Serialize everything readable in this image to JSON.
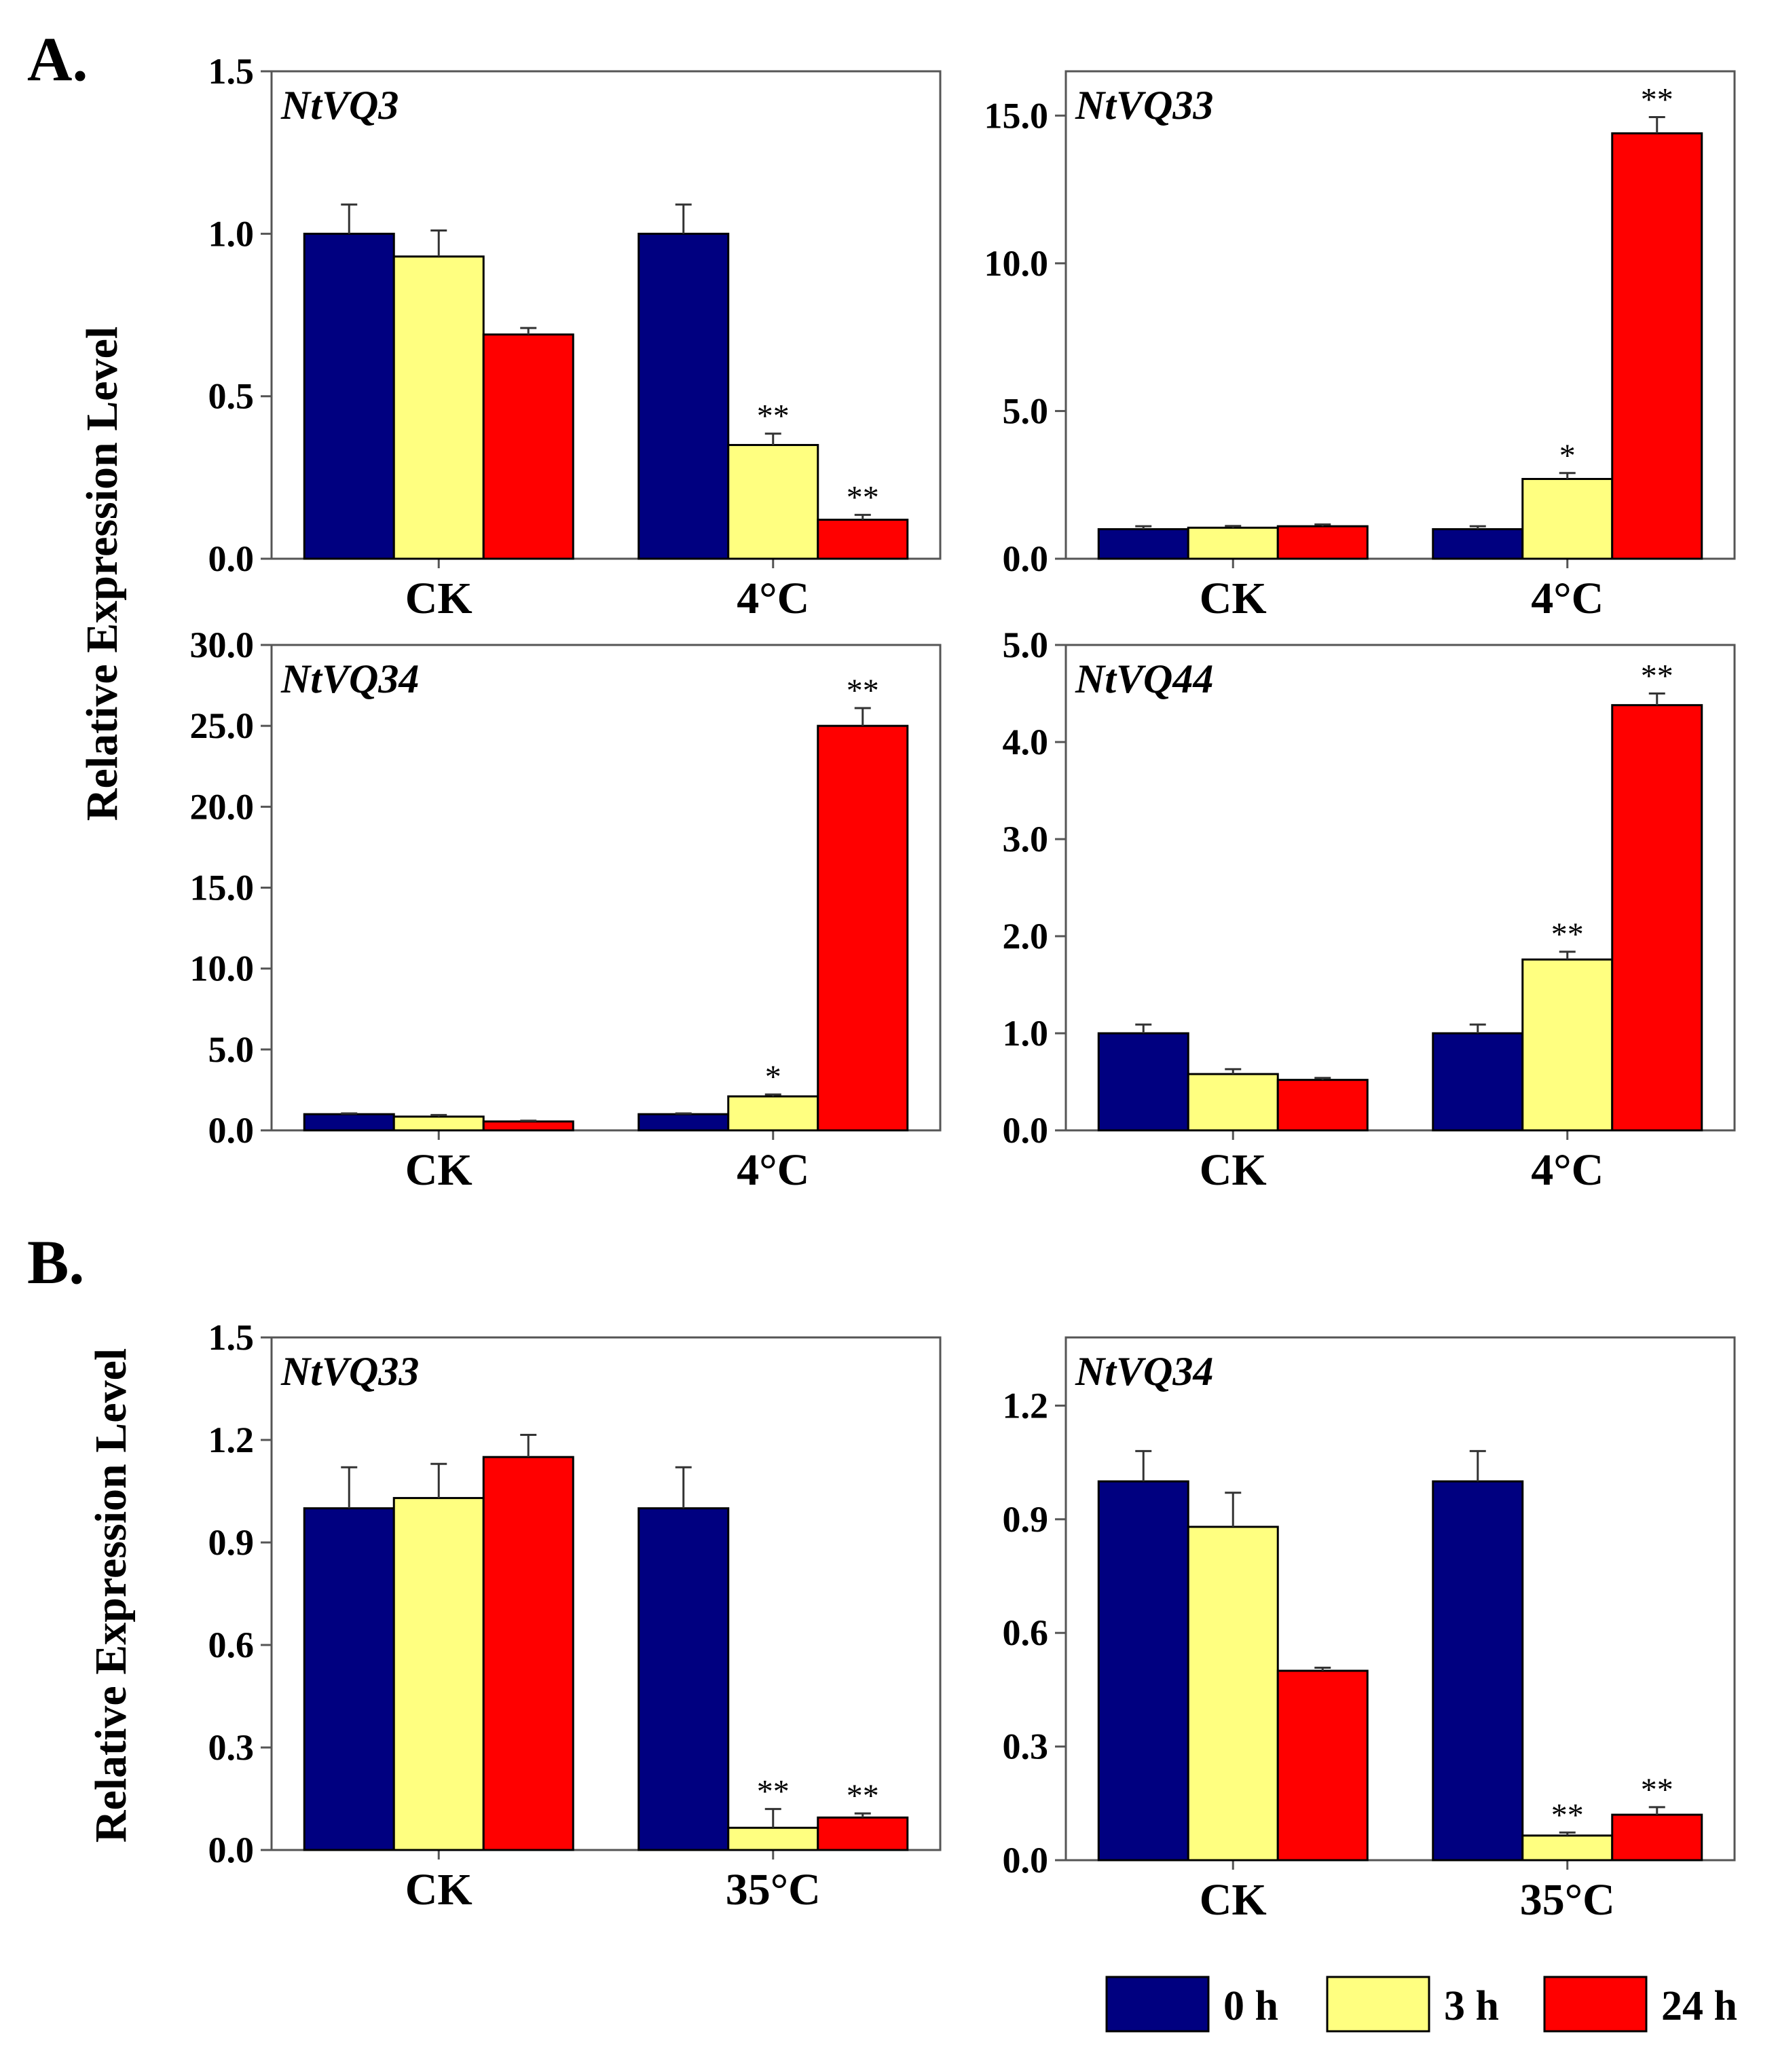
{
  "figure": {
    "panel_a": "A.",
    "panel_b": "B.",
    "ylabel": "Relative Expression Level"
  },
  "legend": [
    {
      "label": "0 h",
      "color": "#000080"
    },
    {
      "label": "3 h",
      "color": "#FFFF80"
    },
    {
      "label": "24 h",
      "color": "#FF0000"
    }
  ],
  "chart_data": [
    {
      "id": "a1",
      "type": "bar",
      "title": "NtVQ3",
      "categories": [
        "CK",
        "4°C"
      ],
      "series": [
        {
          "name": "0 h",
          "values": [
            1.0,
            1.0
          ],
          "errors": [
            0.09,
            0.09
          ],
          "sig": [
            "",
            ""
          ]
        },
        {
          "name": "3 h",
          "values": [
            0.93,
            0.35
          ],
          "errors": [
            0.08,
            0.035
          ],
          "sig": [
            "",
            "**"
          ]
        },
        {
          "name": "24 h",
          "values": [
            0.69,
            0.12
          ],
          "errors": [
            0.02,
            0.015
          ],
          "sig": [
            "",
            "**"
          ]
        }
      ],
      "ylim": [
        0,
        1.5
      ],
      "yticks": [
        "0.0",
        "0.5",
        "1.0",
        "1.5"
      ],
      "xlabel": "",
      "ylabel": "Relative Expression Level"
    },
    {
      "id": "a2",
      "type": "bar",
      "title": "NtVQ33",
      "categories": [
        "CK",
        "4°C"
      ],
      "series": [
        {
          "name": "0 h",
          "values": [
            1.0,
            1.0
          ],
          "errors": [
            0.1,
            0.1
          ],
          "sig": [
            "",
            ""
          ]
        },
        {
          "name": "3 h",
          "values": [
            1.05,
            2.7
          ],
          "errors": [
            0.06,
            0.2
          ],
          "sig": [
            "",
            "*"
          ]
        },
        {
          "name": "24 h",
          "values": [
            1.1,
            14.4
          ],
          "errors": [
            0.06,
            0.55
          ],
          "sig": [
            "",
            "**"
          ]
        }
      ],
      "ylim": [
        0,
        16.5
      ],
      "yticks": [
        "0.0",
        "5.0",
        "10.0",
        "15.0"
      ],
      "xlabel": "",
      "ylabel": "Relative Expression Level"
    },
    {
      "id": "a3",
      "type": "bar",
      "title": "NtVQ34",
      "categories": [
        "CK",
        "4°C"
      ],
      "series": [
        {
          "name": "0 h",
          "values": [
            1.0,
            1.0
          ],
          "errors": [
            0.05,
            0.05
          ],
          "sig": [
            "",
            ""
          ]
        },
        {
          "name": "3 h",
          "values": [
            0.85,
            2.1
          ],
          "errors": [
            0.1,
            0.12
          ],
          "sig": [
            "",
            "*"
          ]
        },
        {
          "name": "24 h",
          "values": [
            0.55,
            25.0
          ],
          "errors": [
            0.05,
            1.1
          ],
          "sig": [
            "",
            "**"
          ]
        }
      ],
      "ylim": [
        0,
        30
      ],
      "yticks": [
        "0.0",
        "5.0",
        "10.0",
        "15.0",
        "20.0",
        "25.0",
        "30.0"
      ],
      "xlabel": "",
      "ylabel": "Relative Expression Level"
    },
    {
      "id": "a4",
      "type": "bar",
      "title": "NtVQ44",
      "categories": [
        "CK",
        "4°C"
      ],
      "series": [
        {
          "name": "0 h",
          "values": [
            1.0,
            1.0
          ],
          "errors": [
            0.09,
            0.09
          ],
          "sig": [
            "",
            ""
          ]
        },
        {
          "name": "3 h",
          "values": [
            0.58,
            1.76
          ],
          "errors": [
            0.05,
            0.08
          ],
          "sig": [
            "",
            "**"
          ]
        },
        {
          "name": "24 h",
          "values": [
            0.52,
            4.38
          ],
          "errors": [
            0.02,
            0.12
          ],
          "sig": [
            "",
            "**"
          ]
        }
      ],
      "ylim": [
        0,
        5.0
      ],
      "yticks": [
        "0.0",
        "1.0",
        "2.0",
        "3.0",
        "4.0",
        "5.0"
      ],
      "xlabel": "",
      "ylabel": "Relative Expression Level"
    },
    {
      "id": "b1",
      "type": "bar",
      "title": "NtVQ33",
      "categories": [
        "CK",
        "35°C"
      ],
      "series": [
        {
          "name": "0 h",
          "values": [
            1.0,
            1.0
          ],
          "errors": [
            0.12,
            0.12
          ],
          "sig": [
            "",
            ""
          ]
        },
        {
          "name": "3 h",
          "values": [
            1.03,
            0.065
          ],
          "errors": [
            0.1,
            0.055
          ],
          "sig": [
            "",
            "**"
          ]
        },
        {
          "name": "24 h",
          "values": [
            1.15,
            0.095
          ],
          "errors": [
            0.065,
            0.012
          ],
          "sig": [
            "",
            "**"
          ]
        }
      ],
      "ylim": [
        0,
        1.5
      ],
      "yticks": [
        "0.0",
        "0.3",
        "0.6",
        "0.9",
        "1.2",
        "1.5"
      ],
      "xlabel": "",
      "ylabel": "Relative Expression Level"
    },
    {
      "id": "b2",
      "type": "bar",
      "title": "NtVQ34",
      "categories": [
        "CK",
        "35°C"
      ],
      "series": [
        {
          "name": "0 h",
          "values": [
            1.0,
            1.0
          ],
          "errors": [
            0.08,
            0.08
          ],
          "sig": [
            "",
            ""
          ]
        },
        {
          "name": "3 h",
          "values": [
            0.88,
            0.065
          ],
          "errors": [
            0.09,
            0.008
          ],
          "sig": [
            "",
            "**"
          ]
        },
        {
          "name": "24 h",
          "values": [
            0.5,
            0.12
          ],
          "errors": [
            0.008,
            0.02
          ],
          "sig": [
            "",
            "**"
          ]
        }
      ],
      "ylim": [
        0,
        1.38
      ],
      "yticks": [
        "0.0",
        "0.3",
        "0.6",
        "0.9",
        "1.2"
      ],
      "xlabel": "",
      "ylabel": "Relative Expression Level"
    }
  ]
}
